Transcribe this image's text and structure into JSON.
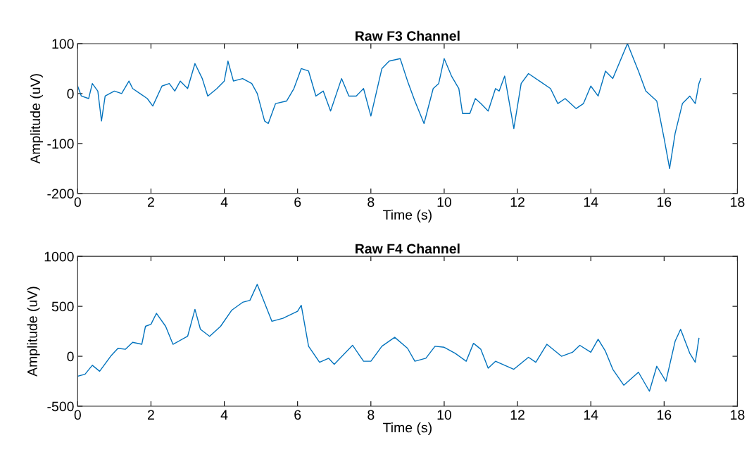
{
  "chart_data": [
    {
      "type": "line",
      "title": "Raw F3 Channel",
      "xlabel": "Time (s)",
      "ylabel": "Amplitude (uV)",
      "xlim": [
        0,
        18
      ],
      "xticks": [
        0,
        2,
        4,
        6,
        8,
        10,
        12,
        14,
        16,
        18
      ],
      "ylim": [
        -200,
        100
      ],
      "yticks": [
        -200,
        -100,
        0,
        100
      ],
      "grid": false,
      "legend": false,
      "series": [
        {
          "color": "#0072bd",
          "x": [
            0,
            0.1,
            0.3,
            0.4,
            0.55,
            0.65,
            0.75,
            1.0,
            1.2,
            1.4,
            1.5,
            1.7,
            1.9,
            2.05,
            2.3,
            2.5,
            2.65,
            2.8,
            3.0,
            3.2,
            3.4,
            3.55,
            3.8,
            4.0,
            4.1,
            4.25,
            4.5,
            4.75,
            4.9,
            5.1,
            5.2,
            5.4,
            5.7,
            5.9,
            6.1,
            6.3,
            6.5,
            6.7,
            6.9,
            7.2,
            7.4,
            7.6,
            7.8,
            8.0,
            8.3,
            8.5,
            8.8,
            9.0,
            9.2,
            9.45,
            9.7,
            9.85,
            10.0,
            10.2,
            10.4,
            10.5,
            10.7,
            10.85,
            11.0,
            11.2,
            11.4,
            11.5,
            11.65,
            11.9,
            12.1,
            12.3,
            12.6,
            12.9,
            13.1,
            13.3,
            13.6,
            13.8,
            14.0,
            14.2,
            14.4,
            14.6,
            15.0,
            15.3,
            15.5,
            15.8,
            16.0,
            16.15,
            16.3,
            16.5,
            16.7,
            16.85,
            16.95,
            17.0
          ],
          "values": [
            15,
            -5,
            -10,
            20,
            5,
            -55,
            -5,
            5,
            0,
            25,
            10,
            0,
            -10,
            -25,
            15,
            20,
            5,
            25,
            10,
            60,
            30,
            -5,
            10,
            25,
            65,
            25,
            30,
            20,
            0,
            -55,
            -60,
            -20,
            -15,
            10,
            50,
            45,
            -5,
            5,
            -35,
            30,
            -5,
            -5,
            10,
            -45,
            50,
            65,
            70,
            25,
            -15,
            -60,
            10,
            20,
            70,
            35,
            10,
            -40,
            -40,
            -10,
            -20,
            -35,
            10,
            5,
            35,
            -70,
            20,
            40,
            25,
            10,
            -20,
            -10,
            -30,
            -20,
            15,
            -5,
            45,
            30,
            100,
            45,
            5,
            -15,
            -90,
            -150,
            -80,
            -20,
            -5,
            -20,
            20,
            30
          ]
        }
      ]
    },
    {
      "type": "line",
      "title": "Raw F4 Channel",
      "xlabel": "Time (s)",
      "ylabel": "Amplitude (uV)",
      "xlim": [
        0,
        18
      ],
      "xticks": [
        0,
        2,
        4,
        6,
        8,
        10,
        12,
        14,
        16,
        18
      ],
      "ylim": [
        -500,
        1000
      ],
      "yticks": [
        -500,
        0,
        500,
        1000
      ],
      "grid": false,
      "legend": false,
      "series": [
        {
          "color": "#0072bd",
          "x": [
            0,
            0.2,
            0.4,
            0.6,
            0.9,
            1.1,
            1.3,
            1.5,
            1.75,
            1.85,
            2.0,
            2.15,
            2.4,
            2.6,
            3.0,
            3.2,
            3.35,
            3.6,
            3.9,
            4.2,
            4.5,
            4.7,
            4.9,
            5.3,
            5.6,
            6.0,
            6.1,
            6.3,
            6.6,
            6.85,
            7.0,
            7.5,
            7.8,
            8.0,
            8.3,
            8.65,
            9.0,
            9.2,
            9.5,
            9.75,
            10.0,
            10.3,
            10.6,
            10.8,
            11.0,
            11.2,
            11.4,
            11.9,
            12.3,
            12.5,
            12.8,
            13.2,
            13.5,
            13.7,
            14.0,
            14.2,
            14.4,
            14.6,
            14.9,
            15.3,
            15.6,
            15.8,
            16.05,
            16.3,
            16.45,
            16.7,
            16.85,
            16.95
          ],
          "values": [
            -200,
            -180,
            -90,
            -150,
            0,
            80,
            70,
            140,
            120,
            300,
            320,
            430,
            300,
            120,
            200,
            470,
            270,
            200,
            300,
            460,
            540,
            560,
            720,
            350,
            380,
            450,
            510,
            100,
            -60,
            -20,
            -80,
            110,
            -50,
            -50,
            100,
            190,
            80,
            -50,
            -20,
            100,
            90,
            30,
            -50,
            130,
            70,
            -120,
            -50,
            -130,
            -10,
            -60,
            120,
            0,
            40,
            110,
            40,
            170,
            50,
            -130,
            -290,
            -160,
            -350,
            -100,
            -250,
            150,
            270,
            30,
            -60,
            180
          ]
        }
      ]
    }
  ]
}
